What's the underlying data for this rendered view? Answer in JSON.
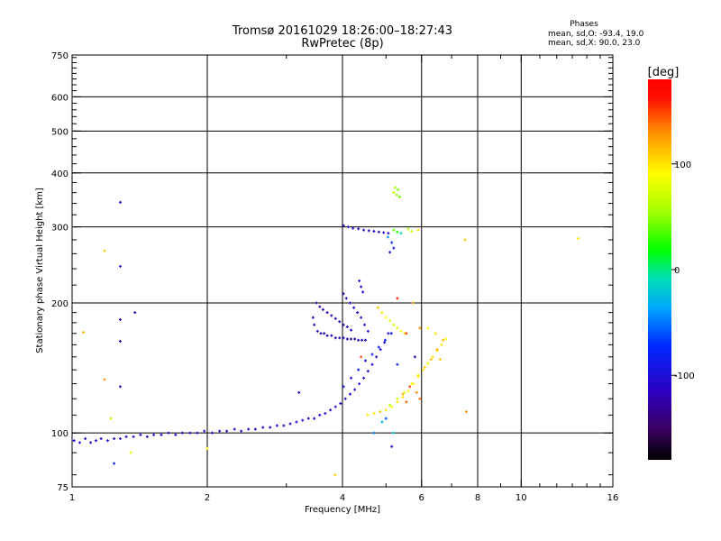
{
  "header": {
    "title_line1": "Tromsø 20161029 18:26:00–18:27:43",
    "title_line2": "RwPretec (8p)"
  },
  "legend": {
    "title": "Phases",
    "o_line": "mean, sd,O:  -93.4, 19.0",
    "x_line": "mean, sd,X:  90.0, 23.0"
  },
  "colorbar": {
    "label": "[deg]",
    "range": [
      -180,
      180
    ],
    "ticks": [
      {
        "value": 100,
        "label": "100"
      },
      {
        "value": 0,
        "label": "0"
      },
      {
        "value": -100,
        "label": "-100"
      }
    ]
  },
  "chart_data": {
    "type": "scatter",
    "xlabel": "Frequency [MHz]",
    "ylabel": "Stationary phase Virtual Height [km]",
    "xscale": "log",
    "yscale": "log",
    "xlim": [
      1,
      16
    ],
    "ylim": [
      75,
      750
    ],
    "grid": true,
    "x_ticks": [
      {
        "value": 1,
        "label": "1"
      },
      {
        "value": 2,
        "label": "2"
      },
      {
        "value": 4,
        "label": "4"
      },
      {
        "value": 6,
        "label": "6"
      },
      {
        "value": 8,
        "label": "8"
      },
      {
        "value": 10,
        "label": "10"
      },
      {
        "value": 16,
        "label": "16"
      }
    ],
    "y_ticks": [
      {
        "value": 75,
        "label": "75"
      },
      {
        "value": 100,
        "label": "100"
      },
      {
        "value": 200,
        "label": "200"
      },
      {
        "value": 300,
        "label": "300"
      },
      {
        "value": 400,
        "label": "400"
      },
      {
        "value": 500,
        "label": "500"
      },
      {
        "value": 600,
        "label": "600"
      },
      {
        "value": 750,
        "label": "750"
      }
    ],
    "x_grid": [
      2,
      4,
      6,
      8,
      10
    ],
    "y_grid": [
      100,
      200,
      300,
      400,
      500,
      600
    ],
    "series": [
      {
        "marker": "+",
        "points": [
          [
            1.01,
            96,
            -100
          ],
          [
            1.04,
            95,
            -105
          ],
          [
            1.07,
            97,
            -100
          ],
          [
            1.1,
            95,
            -110
          ],
          [
            1.13,
            96,
            -100
          ],
          [
            1.16,
            97,
            -105
          ],
          [
            1.2,
            96,
            -100
          ],
          [
            1.24,
            97,
            -110
          ],
          [
            1.28,
            97,
            -100
          ],
          [
            1.32,
            98,
            -105
          ],
          [
            1.37,
            98,
            -100
          ],
          [
            1.42,
            99,
            -110
          ],
          [
            1.47,
            98,
            -100
          ],
          [
            1.52,
            99,
            -105
          ],
          [
            1.58,
            99,
            -100
          ],
          [
            1.64,
            100,
            -110
          ],
          [
            1.7,
            99,
            -100
          ],
          [
            1.76,
            100,
            -105
          ],
          [
            1.83,
            100,
            -100
          ],
          [
            1.9,
            100,
            -110
          ],
          [
            1.97,
            101,
            -100
          ],
          [
            2.05,
            100,
            -105
          ],
          [
            2.13,
            101,
            -100
          ],
          [
            2.21,
            101,
            -110
          ],
          [
            2.3,
            102,
            -100
          ],
          [
            2.38,
            101,
            -105
          ],
          [
            2.47,
            102,
            -100
          ],
          [
            2.56,
            102,
            -110
          ],
          [
            2.66,
            103,
            -100
          ],
          [
            2.76,
            103,
            -105
          ],
          [
            2.86,
            104,
            -100
          ],
          [
            2.96,
            104,
            -110
          ],
          [
            3.06,
            105,
            -100
          ],
          [
            3.16,
            106,
            -105
          ],
          [
            3.26,
            107,
            -100
          ],
          [
            3.36,
            108,
            -110
          ],
          [
            3.46,
            108,
            -100
          ],
          [
            3.56,
            110,
            -105
          ],
          [
            3.66,
            111,
            -100
          ],
          [
            3.76,
            113,
            -110
          ],
          [
            3.86,
            115,
            -100
          ],
          [
            3.96,
            117,
            -105
          ],
          [
            4.06,
            120,
            -100
          ],
          [
            4.16,
            123,
            -110
          ],
          [
            4.26,
            126,
            -100
          ],
          [
            4.36,
            130,
            -105
          ],
          [
            4.46,
            134,
            -100
          ],
          [
            4.56,
            139,
            -110
          ],
          [
            4.66,
            144,
            -100
          ],
          [
            4.76,
            150,
            -105
          ],
          [
            4.86,
            156,
            -100
          ],
          [
            4.96,
            162,
            -110
          ],
          [
            5.06,
            170,
            -100
          ],
          [
            3.44,
            185,
            -120
          ],
          [
            3.46,
            178,
            -125
          ],
          [
            3.52,
            172,
            -115
          ],
          [
            3.58,
            170,
            -120
          ],
          [
            3.64,
            170,
            -115
          ],
          [
            3.7,
            168,
            -120
          ],
          [
            3.78,
            168,
            -115
          ],
          [
            3.86,
            166,
            -120
          ],
          [
            3.94,
            166,
            -115
          ],
          [
            4.02,
            166,
            -120
          ],
          [
            4.1,
            165,
            -115
          ],
          [
            4.18,
            165,
            -120
          ],
          [
            4.26,
            165,
            -115
          ],
          [
            4.34,
            164,
            -120
          ],
          [
            4.42,
            164,
            -115
          ],
          [
            4.5,
            164,
            -120
          ],
          [
            3.5,
            200,
            -130
          ],
          [
            3.56,
            196,
            -130
          ],
          [
            3.62,
            193,
            -125
          ],
          [
            3.7,
            190,
            -125
          ],
          [
            3.78,
            187,
            -120
          ],
          [
            3.86,
            184,
            -120
          ],
          [
            3.94,
            181,
            -115
          ],
          [
            4.02,
            178,
            -115
          ],
          [
            4.1,
            176,
            -110
          ],
          [
            4.18,
            173,
            -110
          ],
          [
            4.02,
            210,
            -120
          ],
          [
            4.08,
            205,
            -115
          ],
          [
            4.16,
            200,
            -115
          ],
          [
            4.24,
            195,
            -110
          ],
          [
            4.32,
            190,
            -110
          ],
          [
            4.4,
            185,
            -105
          ],
          [
            4.48,
            178,
            -105
          ],
          [
            4.56,
            172,
            -100
          ],
          [
            4.02,
            302,
            -120
          ],
          [
            4.12,
            300,
            -115
          ],
          [
            4.22,
            298,
            -110
          ],
          [
            4.34,
            297,
            -115
          ],
          [
            4.46,
            295,
            -110
          ],
          [
            4.58,
            294,
            -115
          ],
          [
            4.7,
            293,
            -110
          ],
          [
            4.82,
            292,
            -115
          ],
          [
            4.94,
            291,
            -110
          ],
          [
            5.06,
            290,
            -110
          ],
          [
            4.36,
            225,
            -110
          ],
          [
            4.4,
            218,
            -105
          ],
          [
            4.44,
            212,
            -110
          ],
          [
            4.02,
            128,
            -90
          ],
          [
            4.18,
            134,
            -95
          ],
          [
            4.34,
            140,
            -85
          ],
          [
            4.5,
            147,
            -90
          ],
          [
            4.66,
            152,
            -85
          ],
          [
            4.82,
            158,
            -90
          ],
          [
            4.98,
            164,
            -85
          ],
          [
            5.14,
            170,
            -90
          ],
          [
            4.55,
            110,
            100
          ],
          [
            4.7,
            111,
            100
          ],
          [
            4.85,
            112,
            110
          ],
          [
            5.0,
            113,
            100
          ],
          [
            5.15,
            115,
            95
          ],
          [
            5.3,
            118,
            100
          ],
          [
            5.45,
            121,
            100
          ],
          [
            5.6,
            125,
            95
          ],
          [
            5.75,
            130,
            100
          ],
          [
            5.9,
            135,
            90
          ],
          [
            6.05,
            140,
            100
          ],
          [
            6.2,
            145,
            95
          ],
          [
            6.35,
            150,
            100
          ],
          [
            6.5,
            155,
            90
          ],
          [
            6.65,
            160,
            100
          ],
          [
            6.8,
            165,
            95
          ],
          [
            5.1,
            116,
            60
          ],
          [
            5.3,
            120,
            70
          ],
          [
            5.5,
            124,
            80
          ],
          [
            5.7,
            130,
            90
          ],
          [
            5.9,
            136,
            100
          ],
          [
            6.1,
            142,
            110
          ],
          [
            6.3,
            148,
            115
          ],
          [
            6.5,
            156,
            120
          ],
          [
            6.7,
            164,
            115
          ],
          [
            5.0,
            185,
            90
          ],
          [
            5.1,
            182,
            80
          ],
          [
            5.2,
            178,
            70
          ],
          [
            5.3,
            175,
            80
          ],
          [
            5.4,
            172,
            90
          ],
          [
            5.5,
            170,
            100
          ],
          [
            4.8,
            195,
            110
          ],
          [
            4.9,
            190,
            100
          ],
          [
            5.2,
            360,
            60
          ],
          [
            5.28,
            356,
            50
          ],
          [
            5.36,
            352,
            40
          ],
          [
            5.24,
            370,
            55
          ],
          [
            5.32,
            366,
            45
          ],
          [
            5.2,
            295,
            40
          ],
          [
            5.3,
            292,
            20
          ],
          [
            5.4,
            290,
            -5
          ],
          [
            5.6,
            297,
            60
          ],
          [
            5.7,
            293,
            70
          ],
          [
            5.05,
            284,
            -40
          ],
          [
            5.15,
            276,
            -70
          ],
          [
            5.2,
            268,
            -90
          ],
          [
            5.1,
            262,
            -110
          ],
          [
            5.85,
            124,
            130
          ],
          [
            5.95,
            120,
            140
          ],
          [
            5.55,
            118,
            140
          ],
          [
            5.45,
            123,
            120
          ],
          [
            5.65,
            128,
            150
          ],
          [
            4.4,
            150,
            150
          ],
          [
            3.2,
            124,
            -110
          ],
          [
            5.8,
            150,
            -110
          ],
          [
            5.3,
            144,
            -90
          ],
          [
            5.0,
            108,
            -60
          ],
          [
            4.9,
            106,
            -30
          ],
          [
            5.2,
            100,
            -20
          ],
          [
            1.28,
            342,
            -110
          ],
          [
            1.28,
            243,
            -110
          ],
          [
            1.28,
            183,
            -115
          ],
          [
            1.28,
            163,
            -120
          ],
          [
            1.28,
            128,
            -105
          ],
          [
            1.38,
            190,
            -115
          ],
          [
            1.06,
            171,
            120
          ],
          [
            1.18,
            264,
            110
          ],
          [
            1.18,
            133,
            130
          ],
          [
            1.22,
            108,
            60
          ],
          [
            1.24,
            85,
            -80
          ],
          [
            5.3,
            205,
            160
          ],
          [
            5.55,
            170,
            150
          ],
          [
            5.95,
            175,
            130
          ],
          [
            6.45,
            170,
            100
          ],
          [
            7.55,
            112,
            130
          ],
          [
            7.5,
            280,
            110
          ],
          [
            13.4,
            282,
            100
          ],
          [
            3.85,
            80,
            110
          ],
          [
            5.15,
            93,
            -110
          ],
          [
            4.7,
            100,
            -50
          ],
          [
            2.0,
            92,
            100
          ],
          [
            1.35,
            90,
            80
          ],
          [
            5.9,
            295,
            100
          ],
          [
            5.75,
            200,
            130
          ],
          [
            6.2,
            175,
            90
          ],
          [
            6.6,
            148,
            110
          ]
        ]
      }
    ]
  }
}
